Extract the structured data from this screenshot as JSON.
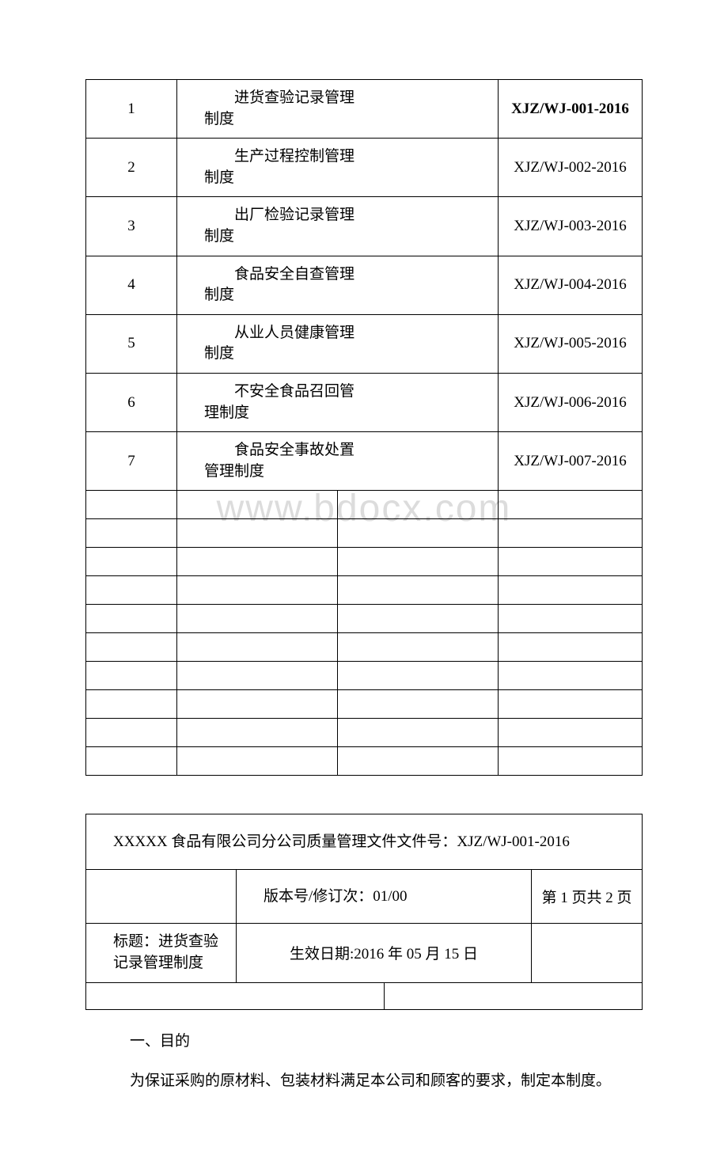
{
  "table1": {
    "rows": [
      {
        "num": "1",
        "name": "进货查验记录管理制度",
        "code": "XJZ/WJ-001-2016",
        "bold": true
      },
      {
        "num": "2",
        "name": "生产过程控制管理制度",
        "code": "XJZ/WJ-002-2016",
        "bold": false
      },
      {
        "num": "3",
        "name": "出厂检验记录管理制度",
        "code": "XJZ/WJ-003-2016",
        "bold": false
      },
      {
        "num": "4",
        "name": "食品安全自查管理制度",
        "code": "XJZ/WJ-004-2016",
        "bold": false
      },
      {
        "num": "5",
        "name": "从业人员健康管理制度",
        "code": "XJZ/WJ-005-2016",
        "bold": false
      },
      {
        "num": "6",
        "name": "不安全食品召回管理制度",
        "code": "XJZ/WJ-006-2016",
        "bold": false
      },
      {
        "num": "7",
        "name": "食品安全事故处置管理制度",
        "code": "XJZ/WJ-007-2016",
        "bold": false
      }
    ],
    "empty_rows": 10
  },
  "table2": {
    "header": "XXXXX 食品有限公司分公司质量管理文件文件号：XJZ/WJ-001-2016",
    "version_label": "版本号/修订次：01/00",
    "page_label": "第 1 页共 2 页",
    "title_label": "标题：进货查验记录管理制度",
    "date_label": "生效日期:2016 年 05 月 15 日"
  },
  "body": {
    "h1": "一、目的",
    "p1": "为保证采购的原材料、包装材料满足本公司和顾客的要求，制定本制度。"
  },
  "watermark": "www.bdocx.com"
}
